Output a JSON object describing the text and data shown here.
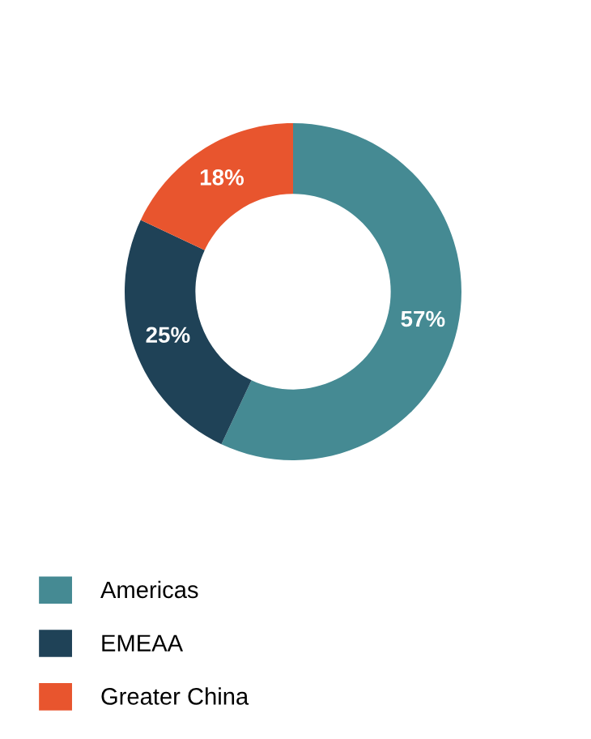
{
  "chart_data": {
    "type": "donut",
    "categories": [
      "Americas",
      "EMEAA",
      "Greater China"
    ],
    "values": [
      57,
      25,
      18
    ],
    "colors": [
      "#458a93",
      "#1f4257",
      "#e8552e"
    ],
    "value_labels": [
      "57%",
      "25%",
      "18%"
    ],
    "legend": "bottom"
  }
}
